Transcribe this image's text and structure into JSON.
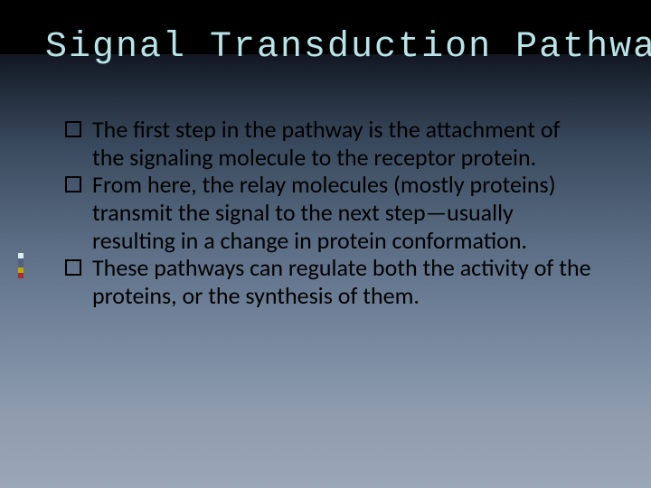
{
  "slide": {
    "title": "Signal Transduction Pathway",
    "title_color": "#b8e4e8",
    "title_font": "Courier New",
    "title_fontsize": 40,
    "background_gradient": [
      "#000000",
      "#0a0e14",
      "#1a2330",
      "#3a4a5e",
      "#5a6d84",
      "#7889a0",
      "#8e9cae",
      "#9aa7b9"
    ],
    "accent_stripe_colors": [
      "#d9f0f2",
      "#556080",
      "#c4a800",
      "#a03030"
    ],
    "bullets": [
      "The first step in the pathway is the attachment of the signaling molecule to the receptor protein.",
      "From here, the relay molecules (mostly proteins) transmit the signal to the next step—usually resulting in a change in protein conformation.",
      "These pathways can regulate both the activity of the proteins, or the synthesis of them."
    ],
    "bullet_marker": "hollow-square",
    "body_fontsize": 26,
    "body_color": "#000000",
    "body_font": "Calibri"
  }
}
